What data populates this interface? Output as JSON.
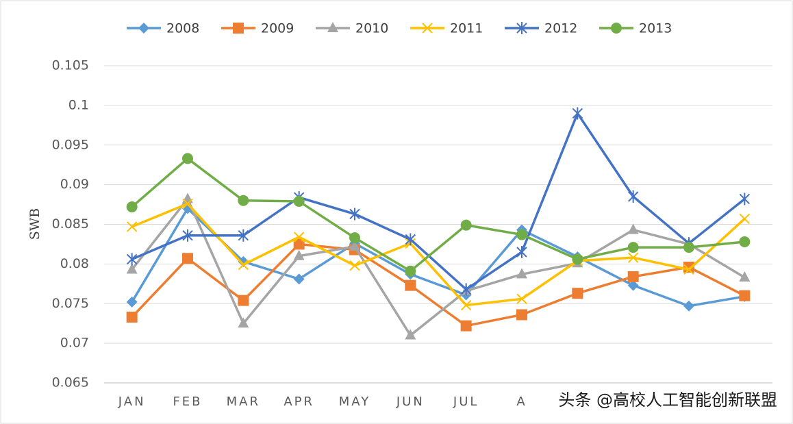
{
  "chart_data": {
    "type": "line",
    "y_label": "SWB",
    "categories": [
      "JAN",
      "FEB",
      "MAR",
      "APR",
      "MAY",
      "JUN",
      "JUL",
      "A",
      null,
      null,
      null,
      null
    ],
    "ylim": [
      0.065,
      0.105
    ],
    "yticks": [
      0.065,
      0.07,
      0.075,
      0.08,
      0.085,
      0.09,
      0.095,
      0.1,
      0.105
    ],
    "grid": true,
    "legend": "top",
    "series": [
      {
        "name": "2008",
        "color": "#5b9bd5",
        "marker": "diamond",
        "values": [
          0.0752,
          0.087,
          0.0803,
          0.0781,
          0.0826,
          0.0787,
          0.0761,
          0.0843,
          0.0809,
          0.0773,
          0.0747,
          0.0759
        ]
      },
      {
        "name": "2009",
        "color": "#ed7d31",
        "marker": "square",
        "values": [
          0.0733,
          0.0807,
          0.0754,
          0.0825,
          0.0818,
          0.0773,
          0.0722,
          0.0736,
          0.0763,
          0.0784,
          0.0796,
          0.076
        ]
      },
      {
        "name": "2010",
        "color": "#a5a5a5",
        "marker": "triangle",
        "values": [
          0.0793,
          0.0882,
          0.0725,
          0.081,
          0.0822,
          0.071,
          0.0766,
          0.0787,
          0.0801,
          0.0843,
          0.0825,
          0.0783
        ]
      },
      {
        "name": "2011",
        "color": "#ffc000",
        "marker": "x",
        "values": [
          0.0847,
          0.0876,
          0.0799,
          0.0834,
          0.0798,
          0.0826,
          0.0748,
          0.0756,
          0.0804,
          0.0808,
          0.0793,
          0.0857
        ]
      },
      {
        "name": "2012",
        "color": "#4472c4",
        "marker": "star",
        "values": [
          0.0806,
          0.0836,
          0.0836,
          0.0884,
          0.0863,
          0.0831,
          0.0768,
          0.0815,
          0.099,
          0.0885,
          0.0826,
          0.0882
        ]
      },
      {
        "name": "2013",
        "color": "#70ad47",
        "marker": "circle",
        "values": [
          0.0872,
          0.0933,
          0.088,
          0.0879,
          0.0833,
          0.0791,
          0.0849,
          0.0837,
          0.0806,
          0.0821,
          0.0821,
          0.0828
        ]
      }
    ],
    "annotation": "头条 @高校人工智能创新联盟"
  }
}
